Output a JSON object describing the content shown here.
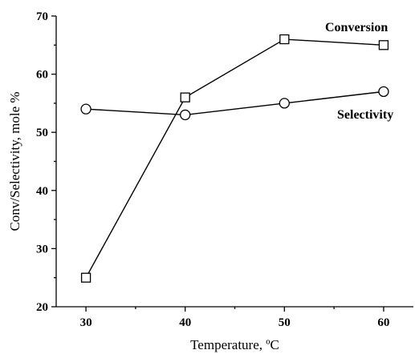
{
  "chart_data": {
    "type": "line",
    "x": [
      30,
      40,
      50,
      60
    ],
    "xlabel": "Temperature, ºC",
    "ylabel": "Conv/Selectivity, mole %",
    "xlim": [
      27,
      63
    ],
    "ylim": [
      20,
      70
    ],
    "xticks": [
      30,
      40,
      50,
      60
    ],
    "yticks": [
      20,
      30,
      40,
      50,
      60,
      70
    ],
    "grid": false,
    "series": [
      {
        "name": "Conversion",
        "marker": "square",
        "values": [
          25,
          56,
          66,
          65
        ]
      },
      {
        "name": "Selectivity",
        "marker": "circle",
        "values": [
          54,
          53,
          55,
          57
        ]
      }
    ]
  }
}
